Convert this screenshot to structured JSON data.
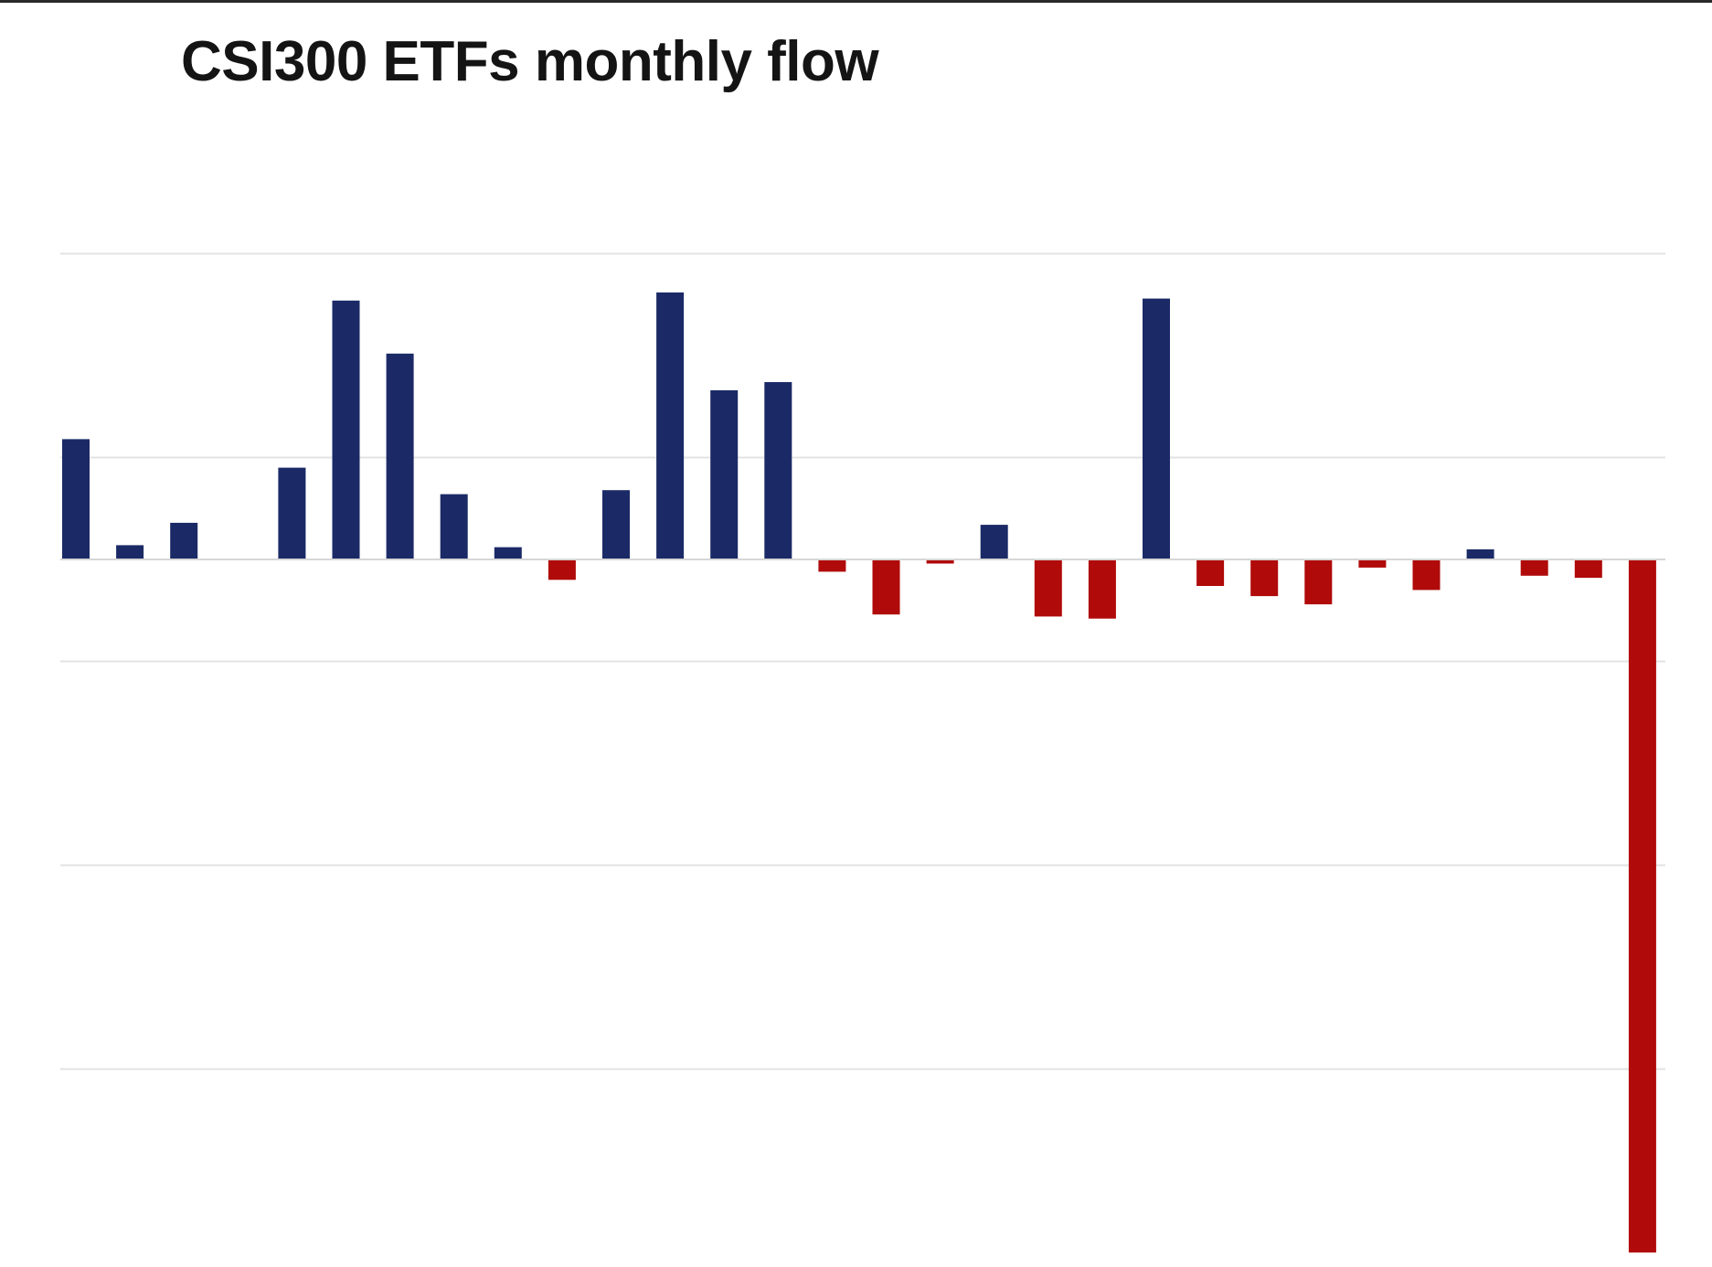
{
  "chart_data": {
    "type": "bar",
    "title": "CSI300 ETFs monthly flow",
    "xlabel": "",
    "ylabel": "",
    "ylim": [
      -3.4,
      1.5
    ],
    "gridlines": [
      1.5,
      0.5,
      -0.5,
      -1.5,
      -2.5
    ],
    "grid": true,
    "legend": "none",
    "axis_tick_labels_visible": false,
    "colors": {
      "positive": "#1b2a66",
      "negative": "#b00a0a",
      "grid": "#e3e3e3",
      "title": "#141414"
    },
    "values": [
      0.59,
      0.07,
      0.18,
      0,
      0.45,
      1.27,
      1.01,
      0.32,
      0.06,
      -0.1,
      0.34,
      1.31,
      0.83,
      0.87,
      -0.06,
      -0.27,
      -0.02,
      0.17,
      -0.28,
      -0.29,
      1.28,
      -0.13,
      -0.18,
      -0.22,
      -0.04,
      -0.15,
      0.05,
      -0.08,
      -0.09,
      -3.4
    ]
  }
}
